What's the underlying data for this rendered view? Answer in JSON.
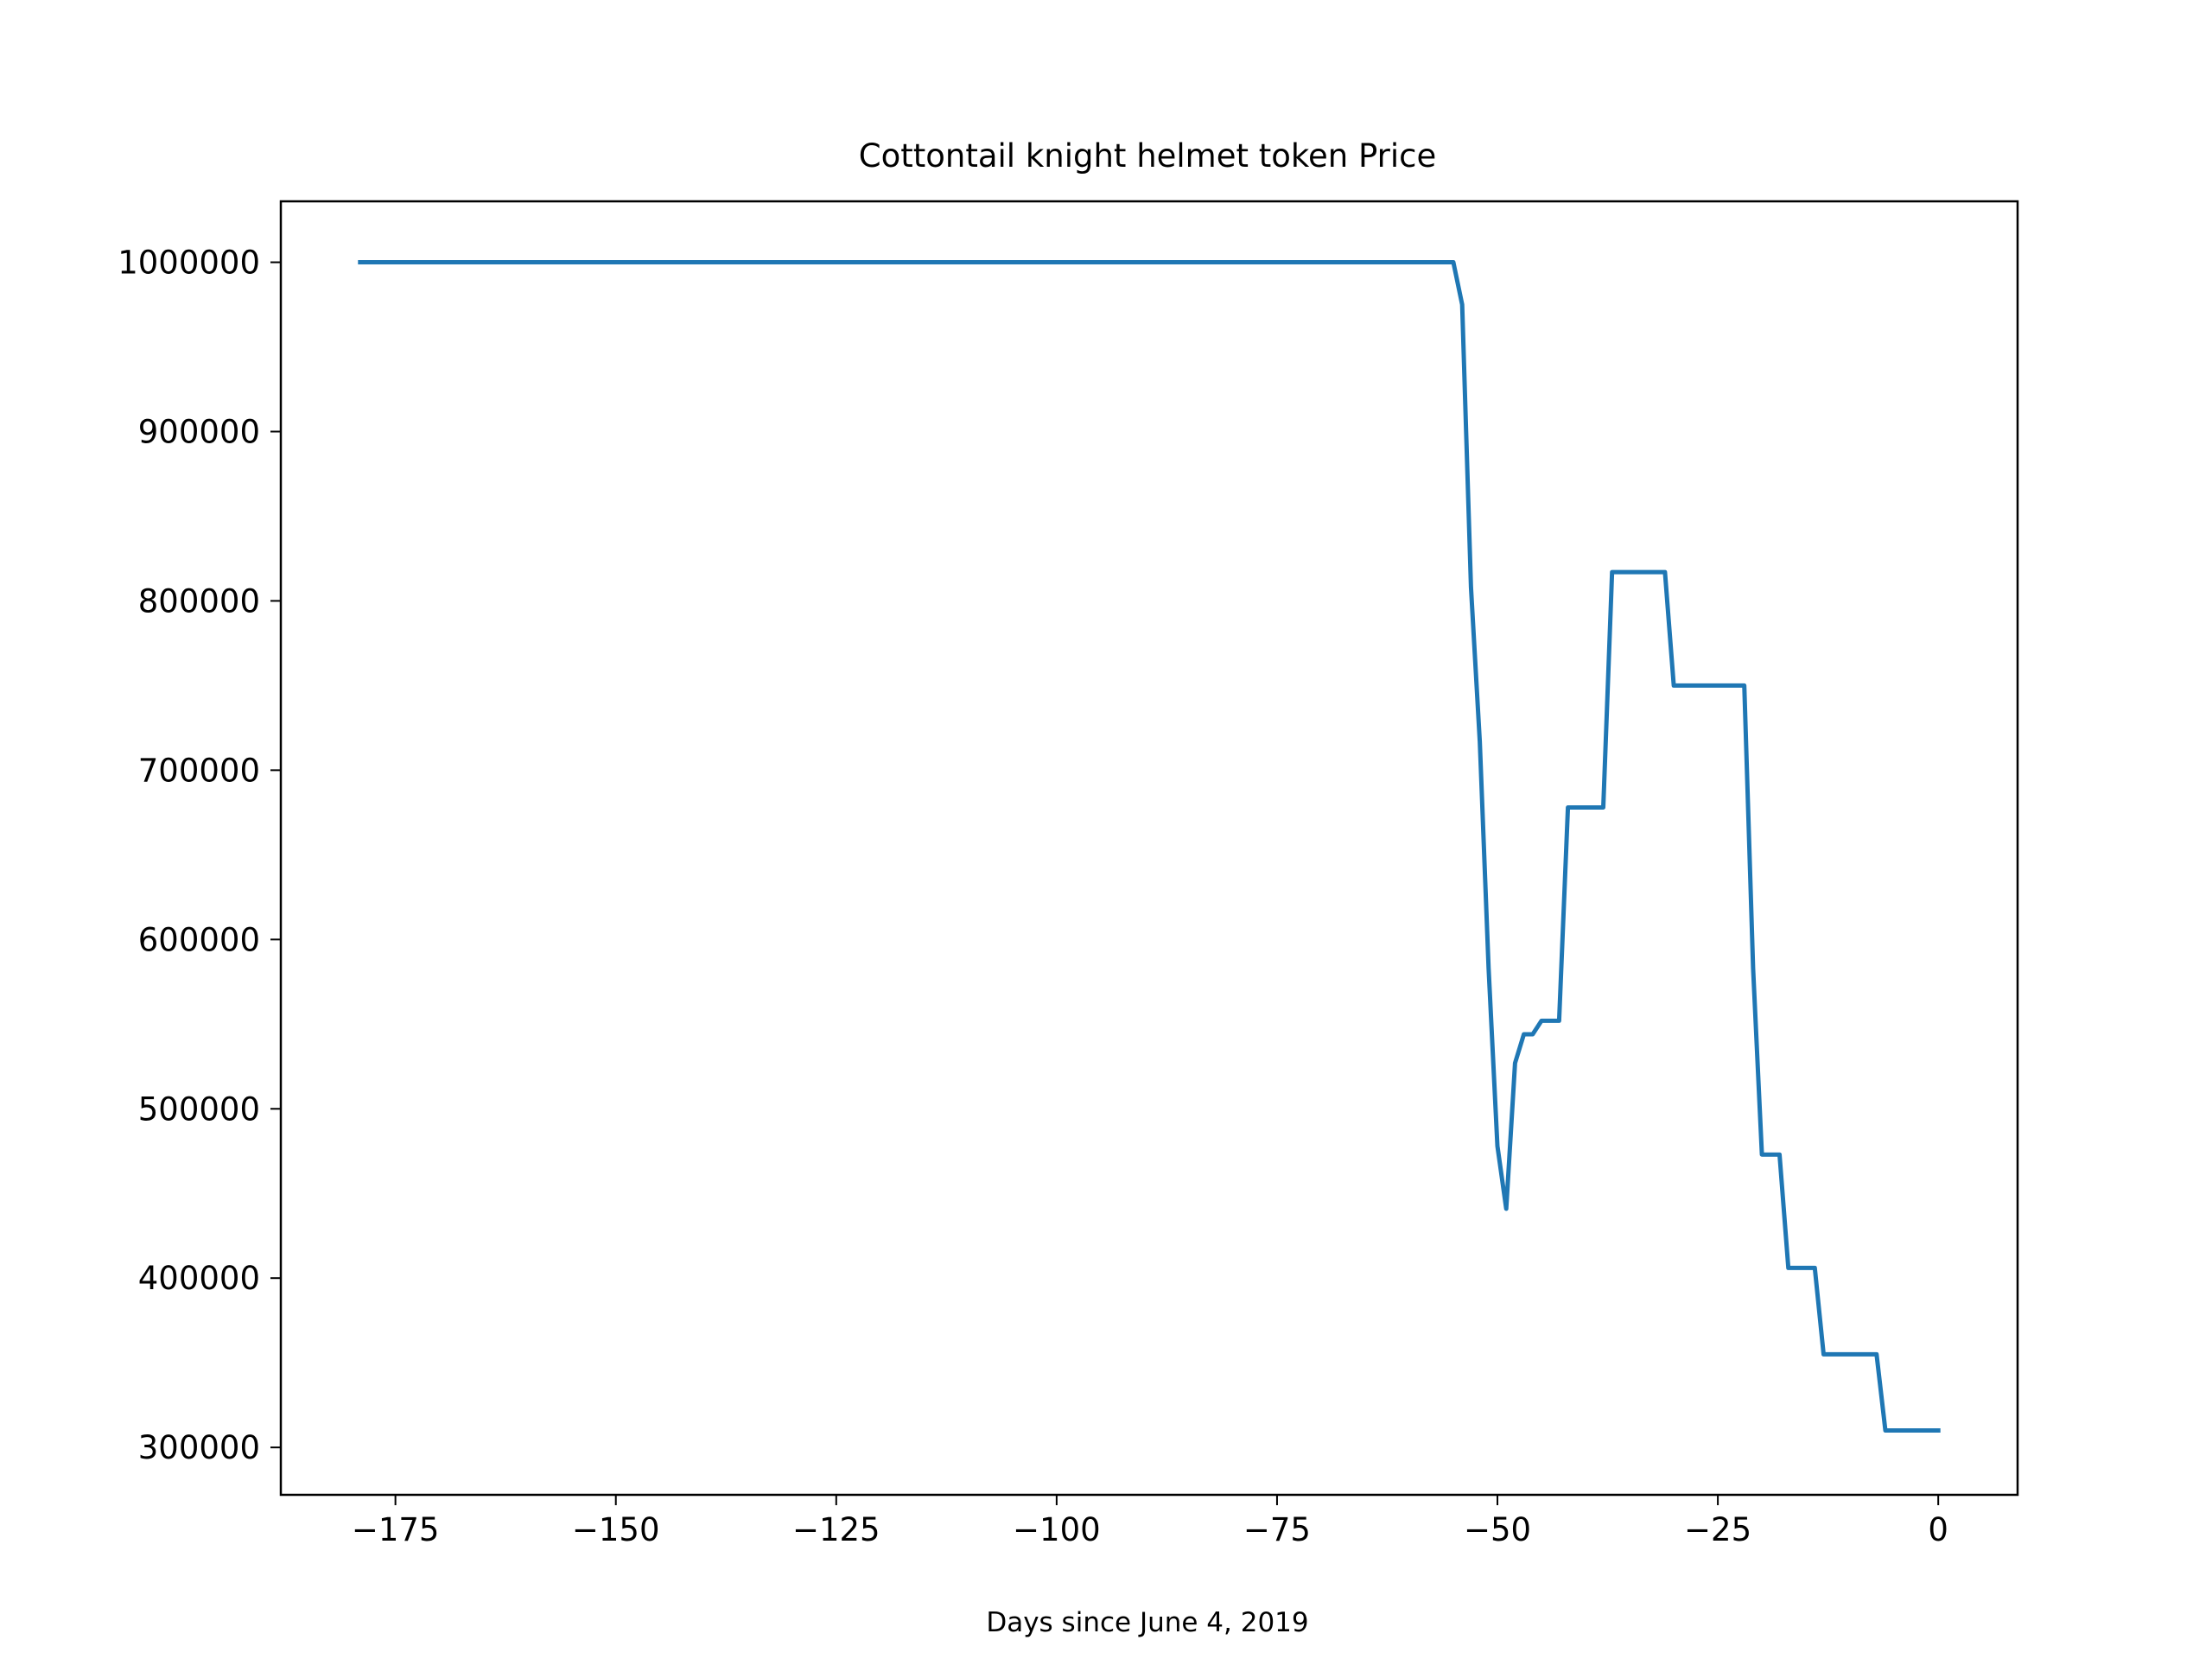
{
  "chart_data": {
    "type": "line",
    "title": "Cottontail knight helmet token Price",
    "xlabel": "Days since June 4, 2019",
    "ylabel": "",
    "xlim": [
      -188,
      9
    ],
    "ylim": [
      272000,
      1036000
    ],
    "xticks": [
      -175,
      -150,
      -125,
      -100,
      -75,
      -50,
      -25,
      0
    ],
    "xtick_labels": [
      "−175",
      "−150",
      "−125",
      "−100",
      "−75",
      "−50",
      "−25",
      "0"
    ],
    "yticks": [
      300000,
      400000,
      500000,
      600000,
      700000,
      800000,
      900000,
      1000000
    ],
    "ytick_labels": [
      "300000",
      "400000",
      "500000",
      "600000",
      "700000",
      "800000",
      "900000",
      "1000000"
    ],
    "grid": false,
    "series": [
      {
        "name": "",
        "color": "#1f77b4",
        "x": [
          -179,
          -55,
          -54,
          -53,
          -52,
          -51,
          -50,
          -49,
          -48,
          -47,
          -46,
          -45,
          -44,
          -43,
          -42,
          -41,
          -40,
          -39,
          -38,
          -37,
          -36,
          -35,
          -34,
          -33,
          -32,
          -31,
          -30,
          -29,
          -28,
          -27,
          -26,
          -25,
          -24,
          -23,
          -22,
          -21,
          -20,
          -19,
          -18,
          -17,
          -16,
          -15,
          -14,
          -13,
          -12,
          -11,
          -10,
          -9,
          -8,
          -7,
          -6,
          -5,
          -4,
          -3,
          -2,
          -1,
          0
        ],
        "y": [
          1000000,
          1000000,
          975000,
          808000,
          717000,
          583000,
          478000,
          441000,
          527000,
          544000,
          544000,
          552000,
          552000,
          552000,
          678000,
          678000,
          678000,
          678000,
          678000,
          817000,
          817000,
          817000,
          817000,
          817000,
          817000,
          817000,
          750000,
          750000,
          750000,
          750000,
          750000,
          750000,
          750000,
          750000,
          750000,
          583000,
          473000,
          473000,
          473000,
          406000,
          406000,
          406000,
          406000,
          355000,
          355000,
          355000,
          355000,
          355000,
          355000,
          355000,
          310000,
          310000,
          310000,
          310000,
          310000,
          310000,
          310000
        ]
      }
    ]
  }
}
